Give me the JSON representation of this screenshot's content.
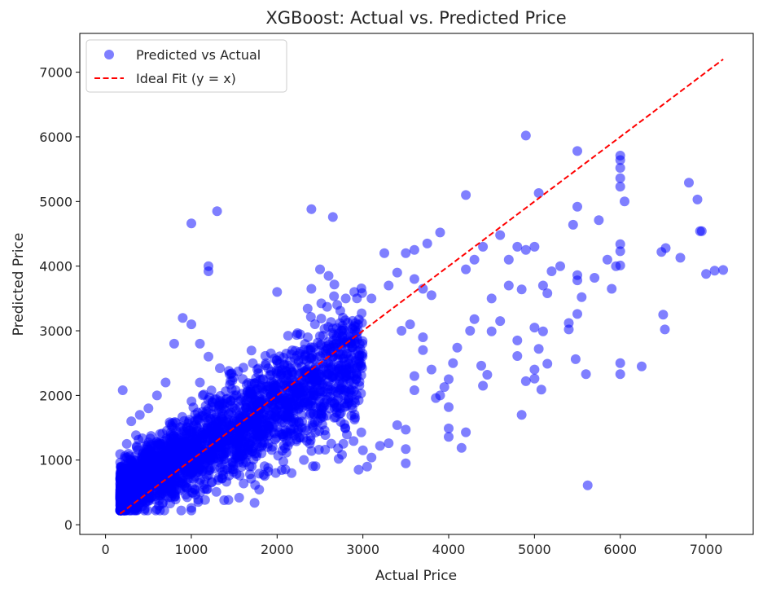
{
  "chart_data": {
    "type": "scatter",
    "title": "XGBoost: Actual vs. Predicted Price",
    "xlabel": "Actual Price",
    "ylabel": "Predicted Price",
    "xlim": [
      -300,
      7550
    ],
    "ylim": [
      -150,
      7600
    ],
    "xticks": [
      1000,
      2000,
      3000,
      4000,
      5000,
      6000,
      7000,
      0
    ],
    "yticks": [
      0,
      1000,
      2000,
      3000,
      4000,
      5000,
      6000,
      7000
    ],
    "legend_position": "top-left",
    "grid": false,
    "series": [
      {
        "name": "Predicted vs Actual",
        "kind": "scatter",
        "color": "#0000ff",
        "alpha": 0.5,
        "generated_bulk": {
          "count": 2600,
          "x_min": 170,
          "x_max": 3000,
          "slope": 0.72,
          "intercept": 380,
          "noise": 330
        },
        "points": [
          [
            1000,
            4660
          ],
          [
            1300,
            4850
          ],
          [
            2400,
            4880
          ],
          [
            2650,
            4760
          ],
          [
            1200,
            4000
          ],
          [
            1200,
            3920
          ],
          [
            4200,
            5100
          ],
          [
            4900,
            6020
          ],
          [
            5500,
            5780
          ],
          [
            5050,
            5130
          ],
          [
            6000,
            5710
          ],
          [
            6000,
            5640
          ],
          [
            6000,
            5520
          ],
          [
            6000,
            5360
          ],
          [
            6000,
            5230
          ],
          [
            6050,
            5000
          ],
          [
            5500,
            4920
          ],
          [
            5450,
            4640
          ],
          [
            5750,
            4710
          ],
          [
            6800,
            5290
          ],
          [
            6900,
            5030
          ],
          [
            6930,
            4540
          ],
          [
            6950,
            4540
          ],
          [
            6480,
            4220
          ],
          [
            6530,
            4280
          ],
          [
            6700,
            4130
          ],
          [
            7000,
            3880
          ],
          [
            7100,
            3930
          ],
          [
            7200,
            3940
          ],
          [
            5900,
            3650
          ],
          [
            6000,
            4340
          ],
          [
            6000,
            4230
          ],
          [
            6000,
            4010
          ],
          [
            5950,
            4000
          ],
          [
            5850,
            4100
          ],
          [
            5700,
            3820
          ],
          [
            5550,
            3520
          ],
          [
            5500,
            3860
          ],
          [
            5500,
            3780
          ],
          [
            5500,
            3260
          ],
          [
            5480,
            2560
          ],
          [
            5600,
            2330
          ],
          [
            5620,
            610
          ],
          [
            6250,
            2450
          ],
          [
            6000,
            2500
          ],
          [
            6000,
            2330
          ],
          [
            6500,
            3250
          ],
          [
            6520,
            3020
          ],
          [
            5400,
            3020
          ],
          [
            5400,
            3120
          ],
          [
            5200,
            3920
          ],
          [
            5300,
            4000
          ],
          [
            5100,
            3700
          ],
          [
            5150,
            3580
          ],
          [
            5000,
            3050
          ],
          [
            5100,
            2990
          ],
          [
            5050,
            2720
          ],
          [
            5000,
            2400
          ],
          [
            4900,
            2220
          ],
          [
            5000,
            2260
          ],
          [
            5080,
            2090
          ],
          [
            5150,
            2490
          ],
          [
            4850,
            1700
          ],
          [
            4800,
            2610
          ],
          [
            4800,
            2850
          ],
          [
            4900,
            4250
          ],
          [
            5000,
            4300
          ],
          [
            4850,
            3640
          ],
          [
            4700,
            3700
          ],
          [
            4600,
            3150
          ],
          [
            4500,
            3500
          ],
          [
            4500,
            2990
          ],
          [
            4450,
            2320
          ],
          [
            4400,
            2150
          ],
          [
            4380,
            2460
          ],
          [
            4300,
            3180
          ],
          [
            4250,
            3000
          ],
          [
            4100,
            2740
          ],
          [
            4050,
            2500
          ],
          [
            4000,
            2250
          ],
          [
            4000,
            1820
          ],
          [
            4000,
            1490
          ],
          [
            4000,
            1360
          ],
          [
            4150,
            1190
          ],
          [
            4200,
            1430
          ],
          [
            3950,
            2130
          ],
          [
            3900,
            2000
          ],
          [
            3850,
            1960
          ],
          [
            3800,
            2400
          ],
          [
            3700,
            2700
          ],
          [
            3600,
            2300
          ],
          [
            3500,
            950
          ],
          [
            3500,
            1170
          ],
          [
            3500,
            1470
          ],
          [
            3400,
            1540
          ],
          [
            3300,
            1260
          ],
          [
            3200,
            1220
          ],
          [
            3100,
            1040
          ],
          [
            3050,
            900
          ],
          [
            2950,
            850
          ],
          [
            3000,
            1150
          ],
          [
            3600,
            2080
          ],
          [
            3700,
            2900
          ],
          [
            3550,
            3100
          ],
          [
            3450,
            3000
          ],
          [
            3750,
            4350
          ],
          [
            3900,
            4520
          ],
          [
            3600,
            4250
          ],
          [
            3500,
            4200
          ],
          [
            4400,
            4300
          ],
          [
            4600,
            4480
          ],
          [
            4700,
            4100
          ],
          [
            4800,
            4300
          ],
          [
            4300,
            4100
          ],
          [
            4200,
            3950
          ],
          [
            3800,
            3550
          ],
          [
            3700,
            3650
          ],
          [
            3600,
            3800
          ],
          [
            3400,
            3900
          ],
          [
            3300,
            3700
          ],
          [
            3250,
            4200
          ],
          [
            3100,
            3500
          ],
          [
            2900,
            3600
          ],
          [
            2800,
            3500
          ],
          [
            2700,
            3400
          ],
          [
            2600,
            3850
          ],
          [
            2500,
            3950
          ],
          [
            2400,
            3650
          ],
          [
            2000,
            3600
          ],
          [
            1200,
            2600
          ],
          [
            1100,
            2200
          ],
          [
            1100,
            2800
          ],
          [
            1000,
            3100
          ],
          [
            900,
            3200
          ],
          [
            800,
            2800
          ],
          [
            700,
            2200
          ],
          [
            600,
            2000
          ],
          [
            500,
            1800
          ],
          [
            400,
            1700
          ],
          [
            300,
            1600
          ],
          [
            200,
            2080
          ],
          [
            1000,
            260
          ],
          [
            1000,
            220
          ],
          [
            600,
            240
          ],
          [
            700,
            450
          ],
          [
            250,
            420
          ],
          [
            200,
            380
          ],
          [
            180,
            430
          ]
        ]
      },
      {
        "name": "Ideal Fit (y = x)",
        "kind": "line",
        "color": "#ff0000",
        "dash": "dashed",
        "x": [
          170,
          7200
        ],
        "y": [
          170,
          7200
        ]
      }
    ]
  }
}
